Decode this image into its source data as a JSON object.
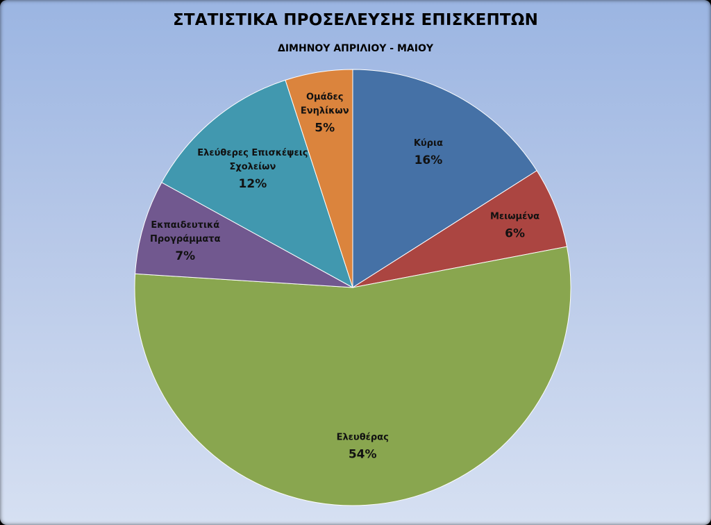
{
  "chart_data": {
    "type": "pie",
    "title": "ΣΤΑΤΙΣΤΙΚΑ ΠΡΟΣΕΛΕΥΣΗΣ ΕΠΙΣΚΕΠΤΩΝ",
    "subtitle": "ΔΙΜΗΝΟΥ ΑΠΡΙΛΙΟΥ - ΜΑΙΟΥ",
    "slices": [
      {
        "label": [
          "Κύρια"
        ],
        "value": 16,
        "display": "16%",
        "color": "#4571a6"
      },
      {
        "label": [
          "Μειωμένα"
        ],
        "value": 6,
        "display": "6%",
        "color": "#ab4541"
      },
      {
        "label": [
          "Ελευθέρας"
        ],
        "value": 54,
        "display": "54%",
        "color": "#89a64f"
      },
      {
        "label": [
          "Εκπαιδευτικά",
          "Προγράμματα"
        ],
        "value": 7,
        "display": "7%",
        "color": "#71588f"
      },
      {
        "label": [
          "Ελεύθερες Επισκέψεις",
          "Σχολείων"
        ],
        "value": 12,
        "display": "12%",
        "color": "#4198af"
      },
      {
        "label": [
          "Ομάδες",
          "Ενηλίκων"
        ],
        "value": 5,
        "display": "5%",
        "color": "#db843d"
      }
    ],
    "start_angle_deg": 0,
    "direction": "clockwise",
    "legend": "none"
  }
}
